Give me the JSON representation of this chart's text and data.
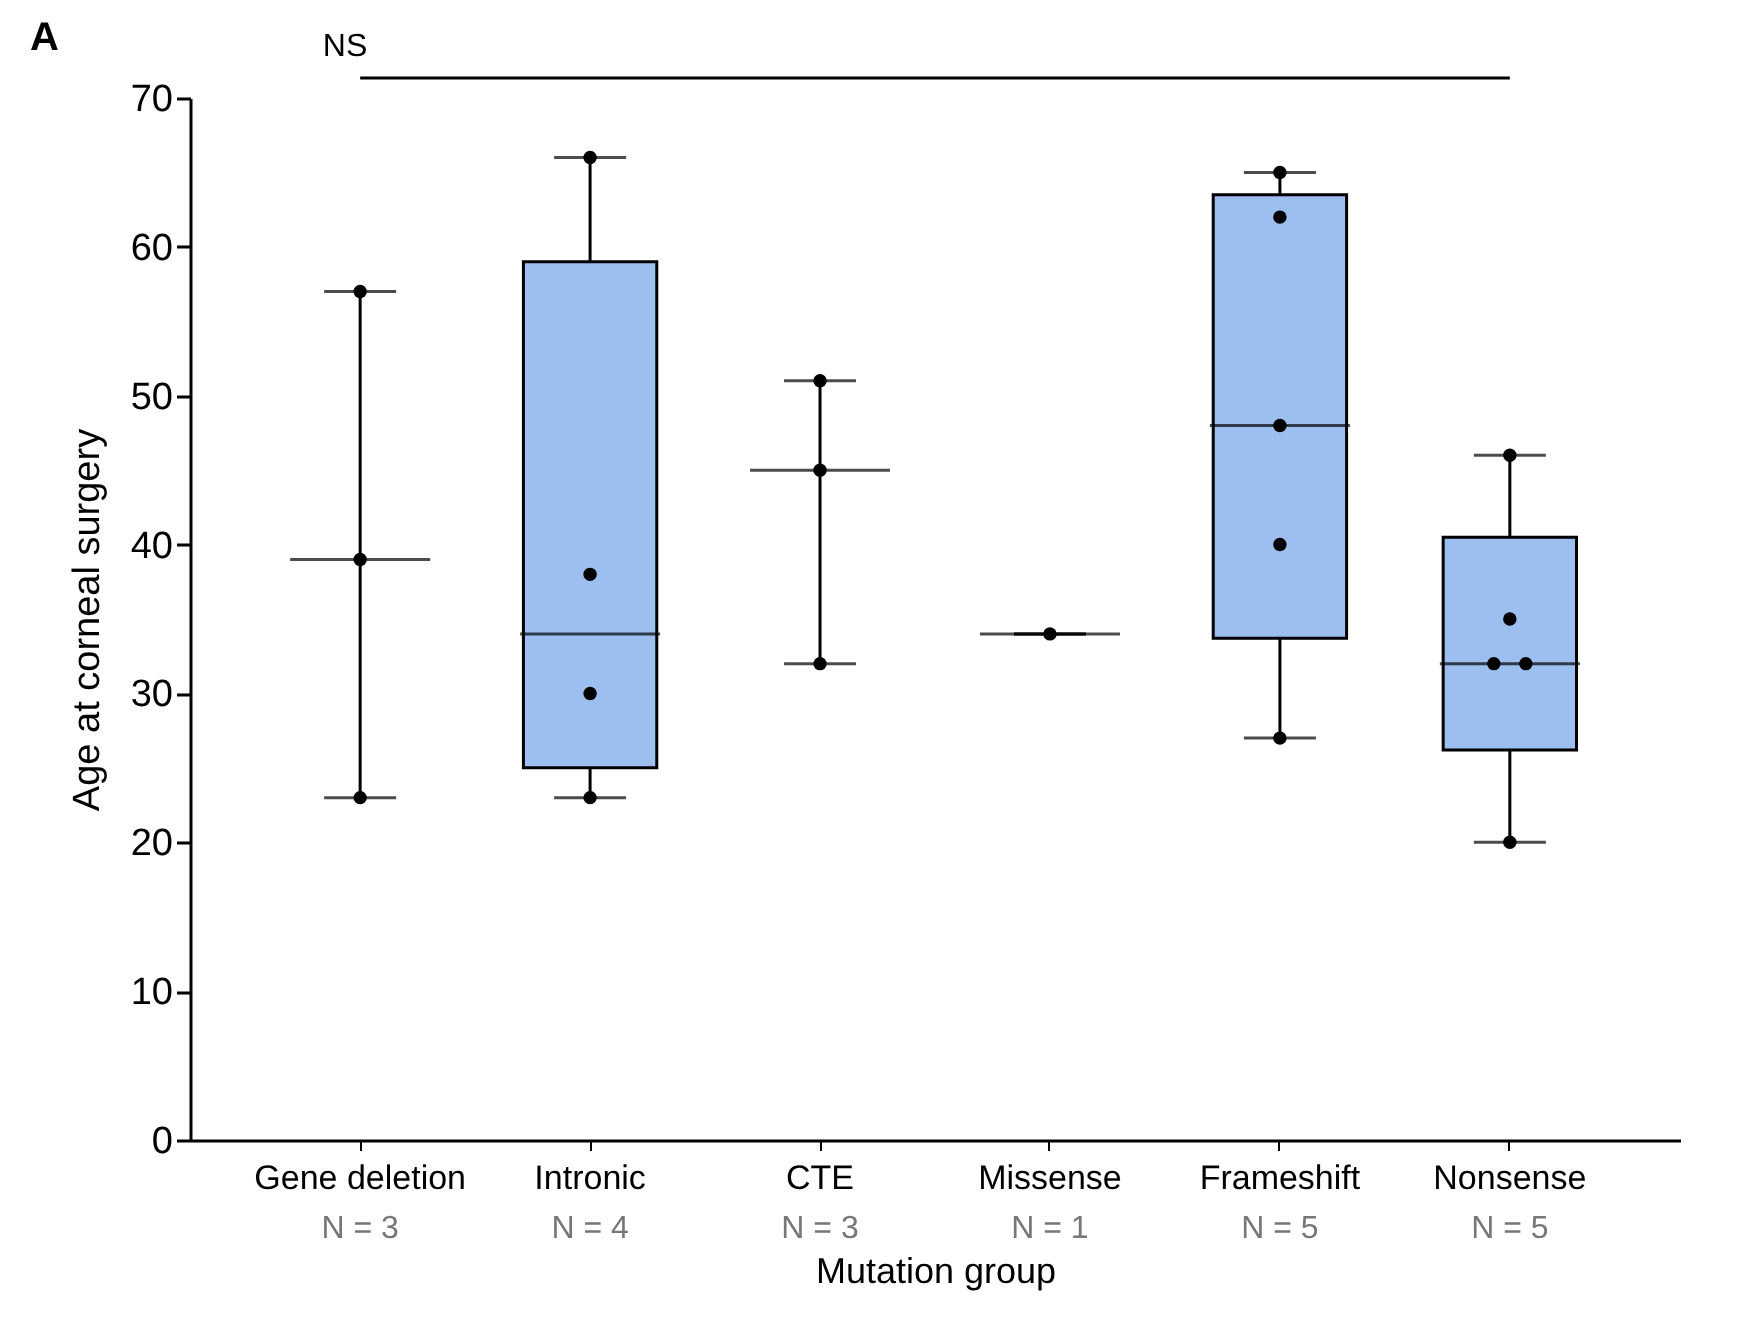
{
  "chart_data": {
    "type": "box",
    "title": "A",
    "xlabel": "Mutation group",
    "ylabel": "Age at corneal surgery",
    "categories": [
      "Gene deletion",
      "Intronic",
      "CTE",
      "Missense",
      "Frameshift",
      "Nonsense"
    ],
    "ylim": [
      0,
      70
    ],
    "yticks": [
      0,
      10,
      20,
      30,
      40,
      50,
      60,
      70
    ],
    "colors": [
      null,
      "#9dbff0",
      null,
      null,
      "#9dbff0",
      "#9dbff0"
    ],
    "boxes": [
      {
        "low": 23,
        "q1": 39,
        "median": 39,
        "q3": 39,
        "high": 57
      },
      {
        "low": 23,
        "q1": 25,
        "median": 34,
        "q3": 59,
        "high": 66
      },
      {
        "low": 32,
        "q1": 45,
        "median": 45,
        "q3": 45,
        "high": 51
      },
      {
        "low": 34,
        "q1": 34,
        "median": 34,
        "q3": 34,
        "high": 34
      },
      {
        "low": 27,
        "q1": 33.7,
        "median": 48,
        "q3": 63.5,
        "high": 65
      },
      {
        "low": 20,
        "q1": 26.2,
        "median": 32,
        "q3": 40.5,
        "high": 46
      }
    ],
    "series": [
      {
        "type": "scatter",
        "color": "#000000",
        "marker": "circle",
        "x": [
          "Gene deletion",
          "Gene deletion",
          "Gene deletion",
          "Intronic",
          "Intronic",
          "Intronic",
          "Intronic",
          "CTE",
          "CTE",
          "CTE",
          "Missense",
          "Frameshift",
          "Frameshift",
          "Frameshift",
          "Frameshift",
          "Frameshift",
          "Nonsense",
          "Nonsense",
          "Nonsense",
          "Nonsense",
          "Nonsense"
        ],
        "values": [
          57,
          39,
          23,
          66,
          38,
          30,
          23,
          51,
          45,
          32,
          34,
          65,
          62,
          48,
          40,
          27,
          46,
          35,
          32,
          32,
          20
        ]
      }
    ],
    "annotations": [
      "NS",
      "N = 3",
      "N = 4",
      "N = 3",
      "N = 1",
      "N = 5",
      "N = 5"
    ]
  }
}
